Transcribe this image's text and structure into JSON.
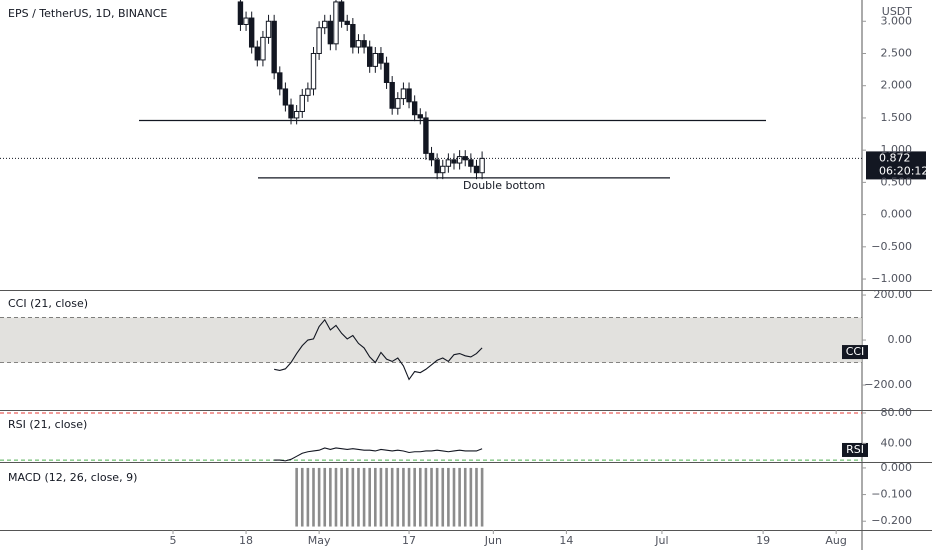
{
  "chart_data": [
    {
      "type": "candlestick",
      "title": "EPS / TetherUS, 1D, BINANCE",
      "unit": "USDT",
      "ylim": [
        -1.17,
        3.33
      ],
      "yticks": [
        {
          "value": 3,
          "label": "3.000"
        },
        {
          "value": 2.5,
          "label": "2.500"
        },
        {
          "value": 2,
          "label": "2.000"
        },
        {
          "value": 1.5,
          "label": "1.500"
        },
        {
          "value": 1,
          "label": "1.000"
        },
        {
          "value": 0.5,
          "label": "0.500"
        },
        {
          "value": 0,
          "label": "0.000"
        },
        {
          "value": -0.5,
          "label": "−0.500"
        },
        {
          "value": -1,
          "label": "−1.000"
        }
      ],
      "xticks": [
        {
          "value": 0,
          "label": "5"
        },
        {
          "value": 13,
          "label": "18"
        },
        {
          "value": 26,
          "label": "May"
        },
        {
          "value": 42,
          "label": "17"
        },
        {
          "value": 57,
          "label": "Jun"
        },
        {
          "value": 70,
          "label": "14"
        },
        {
          "value": 87,
          "label": "Jul"
        },
        {
          "value": 105,
          "label": "19"
        },
        {
          "value": 118,
          "label": "Aug"
        }
      ],
      "x": [
        12,
        13,
        14,
        15,
        16,
        17,
        18,
        19,
        20,
        21,
        22,
        23,
        24,
        25,
        26,
        27,
        28,
        29,
        30,
        31,
        32,
        33,
        34,
        35,
        36,
        37,
        38,
        39,
        40,
        41,
        42,
        43,
        44,
        45,
        46,
        47,
        48,
        49,
        50,
        51,
        52,
        53,
        54,
        55
      ],
      "open": [
        3.3,
        2.95,
        3.05,
        2.6,
        2.4,
        2.75,
        3.0,
        2.2,
        1.95,
        1.7,
        1.5,
        1.6,
        1.85,
        1.95,
        2.5,
        2.9,
        3.0,
        2.65,
        3.3,
        3.0,
        2.95,
        2.6,
        2.7,
        2.6,
        2.3,
        2.5,
        2.35,
        2.05,
        1.65,
        1.8,
        1.95,
        1.75,
        1.55,
        1.5,
        0.95,
        0.85,
        0.65,
        0.75,
        0.85,
        0.8,
        0.9,
        0.85,
        0.75,
        0.65
      ],
      "high": [
        3.4,
        3.15,
        3.15,
        2.7,
        2.85,
        3.1,
        3.1,
        2.3,
        2.05,
        1.8,
        1.7,
        1.95,
        2.05,
        2.6,
        3.0,
        3.1,
        3.1,
        3.4,
        3.4,
        3.1,
        3.05,
        2.8,
        2.8,
        2.7,
        2.6,
        2.6,
        2.45,
        2.15,
        1.9,
        2.05,
        2.05,
        1.85,
        1.65,
        1.6,
        1.05,
        0.95,
        0.85,
        0.95,
        0.95,
        1.0,
        1.0,
        0.95,
        0.85,
        0.98
      ],
      "low": [
        2.85,
        2.85,
        2.5,
        2.3,
        2.3,
        2.65,
        2.1,
        1.85,
        1.6,
        1.4,
        1.4,
        1.5,
        1.75,
        1.85,
        2.4,
        2.8,
        2.55,
        2.55,
        2.9,
        2.85,
        2.5,
        2.5,
        2.5,
        2.2,
        2.2,
        2.25,
        1.95,
        1.55,
        1.55,
        1.7,
        1.65,
        1.45,
        1.4,
        0.85,
        0.75,
        0.55,
        0.55,
        0.65,
        0.7,
        0.7,
        0.75,
        0.65,
        0.55,
        0.55
      ],
      "close": [
        2.95,
        3.05,
        2.6,
        2.4,
        2.75,
        3.0,
        2.2,
        1.95,
        1.7,
        1.5,
        1.6,
        1.85,
        1.95,
        2.5,
        2.9,
        3.0,
        2.65,
        3.3,
        3.0,
        2.95,
        2.6,
        2.7,
        2.6,
        2.3,
        2.5,
        2.35,
        2.05,
        1.65,
        1.8,
        1.95,
        1.75,
        1.55,
        1.5,
        0.95,
        0.85,
        0.65,
        0.75,
        0.85,
        0.8,
        0.9,
        0.85,
        0.75,
        0.65,
        0.872
      ],
      "hlines": [
        1.46,
        0.57
      ],
      "annotation": "Double bottom",
      "last_price": {
        "value": 0.872,
        "label": "0.872"
      },
      "countdown": "06:20:12"
    },
    {
      "type": "line",
      "title": "CCI (21, close)",
      "badge": "CCI",
      "ylim": [
        -311,
        218
      ],
      "yticks": [
        {
          "value": 200,
          "label": "200.00"
        },
        {
          "value": 0,
          "label": "0.00"
        },
        {
          "value": -200,
          "label": "−200.00"
        }
      ],
      "bands": [
        100,
        -100
      ],
      "x": [
        18,
        19,
        20,
        21,
        22,
        23,
        24,
        25,
        26,
        27,
        28,
        29,
        30,
        31,
        32,
        33,
        34,
        35,
        36,
        37,
        38,
        39,
        40,
        41,
        42,
        43,
        44,
        45,
        46,
        47,
        48,
        49,
        50,
        51,
        52,
        53,
        54,
        55
      ],
      "values": [
        -130,
        -135,
        -128,
        -100,
        -60,
        -25,
        0,
        5,
        60,
        90,
        45,
        65,
        30,
        5,
        20,
        -15,
        -35,
        -75,
        -100,
        -55,
        -85,
        -95,
        -80,
        -115,
        -175,
        -140,
        -145,
        -130,
        -110,
        -90,
        -80,
        -95,
        -65,
        -60,
        -70,
        -75,
        -60,
        -35
      ]
    },
    {
      "type": "line",
      "title": "RSI (21, close)",
      "badge": "RSI",
      "ylim": [
        15.5,
        82.6
      ],
      "yticks": [
        {
          "value": 80,
          "label": "80.00"
        },
        {
          "value": 40,
          "label": "40.00"
        }
      ],
      "bands": [
        80,
        18
      ],
      "x": [
        18,
        19,
        20,
        21,
        22,
        23,
        24,
        25,
        26,
        27,
        28,
        29,
        30,
        31,
        32,
        33,
        34,
        35,
        36,
        37,
        38,
        39,
        40,
        41,
        42,
        43,
        44,
        45,
        46,
        47,
        48,
        49,
        50,
        51,
        52,
        53,
        54,
        55
      ],
      "values": [
        18,
        18,
        17,
        19,
        23,
        27,
        29,
        30,
        31,
        34,
        32,
        34,
        33,
        32,
        33,
        32,
        31,
        31,
        30,
        32,
        31,
        30,
        31,
        30,
        28,
        29,
        29,
        30,
        30,
        31,
        30,
        29,
        30,
        31,
        30,
        30,
        30,
        33
      ]
    },
    {
      "type": "bar",
      "title": "MACD (12, 26, close, 9)",
      "ylim": [
        -0.233,
        0.0185
      ],
      "yticks": [
        {
          "value": 0,
          "label": "0.000"
        },
        {
          "value": -0.1,
          "label": "−0.100"
        },
        {
          "value": -0.2,
          "label": "−0.200"
        }
      ],
      "x": [
        22,
        23,
        24,
        25,
        26,
        27,
        28,
        29,
        30,
        31,
        32,
        33,
        34,
        35,
        36,
        37,
        38,
        39,
        40,
        41,
        42,
        43,
        44,
        45,
        46,
        47,
        48,
        49,
        50,
        51,
        52,
        53,
        54,
        55
      ],
      "values": [
        -0.22,
        -0.22,
        -0.22,
        -0.22,
        -0.22,
        -0.22,
        -0.22,
        -0.22,
        -0.22,
        -0.22,
        -0.22,
        -0.22,
        -0.22,
        -0.22,
        -0.22,
        -0.22,
        -0.22,
        -0.22,
        -0.22,
        -0.22,
        -0.22,
        -0.22,
        -0.22,
        -0.22,
        -0.22,
        -0.22,
        -0.22,
        -0.22,
        -0.22,
        -0.22,
        -0.22,
        -0.22,
        -0.22,
        -0.22
      ]
    }
  ]
}
